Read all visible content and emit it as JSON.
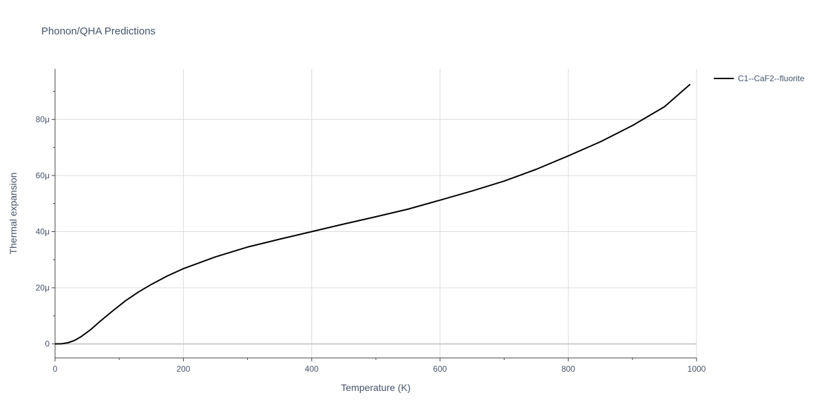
{
  "chart_data": {
    "type": "line",
    "title": "Phonon/QHA Predictions",
    "xlabel": "Temperature (K)",
    "ylabel": "Thermal expansion",
    "xlim": [
      0,
      1000
    ],
    "ylim": [
      -5,
      98
    ],
    "x_ticks": [
      0,
      200,
      400,
      600,
      800,
      1000
    ],
    "x_tick_labels": [
      "0",
      "200",
      "400",
      "600",
      "800",
      "1000"
    ],
    "y_ticks": [
      0,
      20,
      40,
      60,
      80
    ],
    "y_tick_labels": [
      "0",
      "20μ",
      "40μ",
      "60μ",
      "80μ"
    ],
    "grid": true,
    "legend_position": "top-right",
    "series": [
      {
        "name": "C1--CaF2--fluorite",
        "color": "#000000",
        "x": [
          0,
          10,
          20,
          30,
          40,
          55,
          70,
          90,
          110,
          130,
          150,
          175,
          200,
          250,
          300,
          350,
          400,
          450,
          500,
          550,
          600,
          650,
          700,
          750,
          800,
          850,
          900,
          950,
          990
        ],
        "y": [
          0,
          0.05,
          0.4,
          1.2,
          2.5,
          5.0,
          8.0,
          11.8,
          15.4,
          18.5,
          21.2,
          24.2,
          26.8,
          31.0,
          34.5,
          37.3,
          40.0,
          42.7,
          45.3,
          48.0,
          51.2,
          54.5,
          58.0,
          62.2,
          67.0,
          72.0,
          77.8,
          84.5,
          92.5
        ]
      }
    ]
  }
}
